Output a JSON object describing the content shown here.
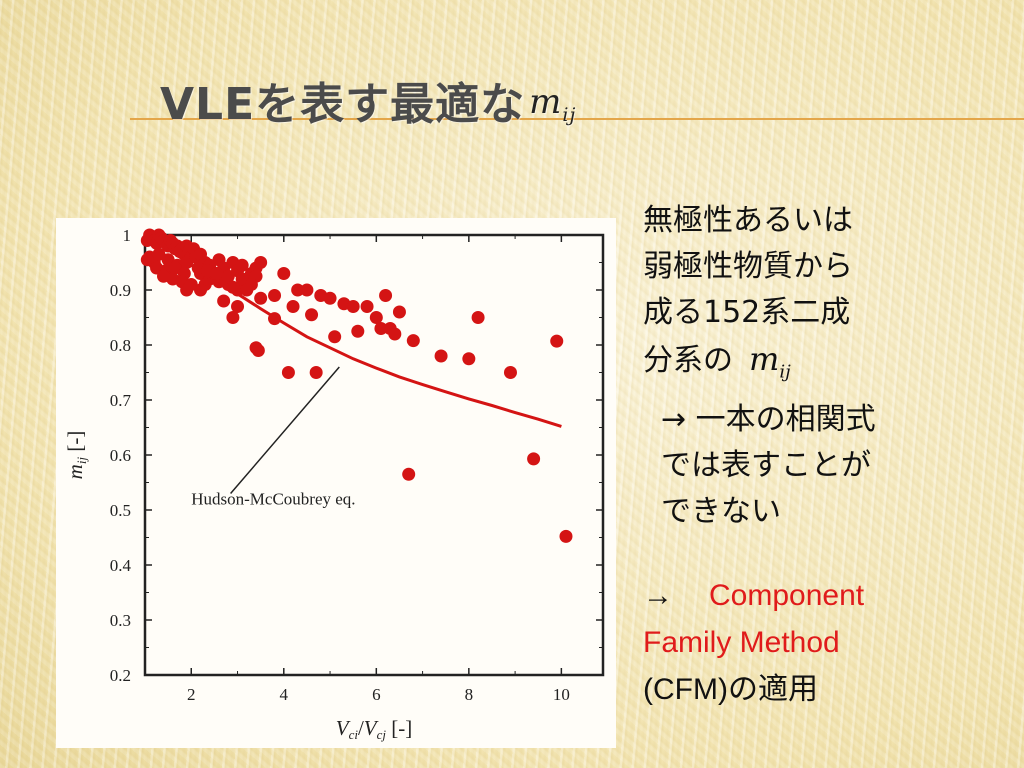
{
  "slide": {
    "title_text": "VLEを表す最適な",
    "title_math": "m",
    "title_math_sub": "ij",
    "bullet1_lines": [
      "無極性あるいは",
      "弱極性物質から",
      "成る152系二成",
      "分系の"
    ],
    "bullet1_math": "m",
    "bullet1_math_sub": "ij",
    "bullet2_lines": [
      "→ 一本の相関式",
      "では表すことが",
      "できない"
    ],
    "bullet3_arrow": "→",
    "bullet3_red_lines": [
      "Component",
      "Family Method"
    ],
    "bullet3_tail_red": "(CFM)",
    "bullet3_tail_black": "の適用"
  },
  "colors": {
    "title": "#4b4b4b",
    "accent_line": "#e4a64a",
    "marker": "#d41414",
    "highlight_text": "#e01b1b"
  },
  "chart_data": {
    "type": "scatter",
    "xlabel_parts": [
      "V",
      "ci",
      "/",
      "V",
      "cj",
      " [-]"
    ],
    "ylabel_parts": [
      "m",
      "ij",
      " [-]"
    ],
    "xlim": [
      1,
      10.9
    ],
    "ylim": [
      0.2,
      1.0
    ],
    "x_ticks": [
      2,
      4,
      6,
      8,
      10
    ],
    "x_tick_labels": [
      "2",
      "4",
      "6",
      "8",
      "10"
    ],
    "y_ticks": [
      0.2,
      0.3,
      0.4,
      0.5,
      0.6,
      0.7,
      0.8,
      0.9,
      1.0
    ],
    "y_tick_labels": [
      "0.2",
      "0.3",
      "0.4",
      "0.5",
      "0.6",
      "0.7",
      "0.8",
      "0.9",
      "1"
    ],
    "annotation": {
      "text": "Hudson-McCoubrey eq.",
      "x": 2.0,
      "y": 0.51,
      "arrow_to": [
        5.2,
        0.76
      ]
    },
    "series": [
      {
        "kind": "line",
        "x": [
          1.0,
          1.5,
          2.0,
          2.5,
          3.0,
          3.5,
          4.0,
          4.5,
          5.0,
          5.5,
          6.0,
          6.5,
          7.0,
          7.5,
          8.0,
          8.5,
          9.0,
          9.5,
          10.0
        ],
        "y": [
          1.0,
          0.975,
          0.945,
          0.92,
          0.893,
          0.866,
          0.84,
          0.815,
          0.795,
          0.775,
          0.758,
          0.742,
          0.728,
          0.715,
          0.702,
          0.69,
          0.677,
          0.665,
          0.652
        ]
      },
      {
        "kind": "scatter",
        "x": [
          1.05,
          1.1,
          1.15,
          1.2,
          1.25,
          1.3,
          1.35,
          1.4,
          1.45,
          1.5,
          1.55,
          1.6,
          1.65,
          1.7,
          1.75,
          1.8,
          1.85,
          1.9,
          1.95,
          2.0,
          2.05,
          1.1,
          1.2,
          1.3,
          1.5,
          1.7,
          1.9,
          1.05,
          1.25,
          1.45,
          1.65,
          1.85,
          2.1,
          2.2,
          2.3,
          2.4,
          2.5,
          2.6,
          2.7,
          2.8,
          2.9,
          3.0,
          3.1,
          3.2,
          3.3,
          3.4,
          3.5,
          2.2,
          2.4,
          2.6,
          2.8,
          3.0,
          3.2,
          3.4,
          2.3,
          2.5,
          2.7,
          2.9,
          3.1,
          3.3,
          2.15,
          2.35,
          2.55,
          1.6,
          1.8,
          2.0,
          2.2,
          1.4,
          1.9,
          2.7,
          2.9,
          3.0,
          3.2,
          3.5,
          3.8,
          4.0,
          4.3,
          4.5,
          4.8,
          5.0,
          5.3,
          5.5,
          5.8,
          6.0,
          6.2,
          6.3,
          6.5,
          3.8,
          4.2,
          4.6,
          5.1,
          5.6,
          6.1,
          6.4,
          4.1,
          4.7,
          3.4,
          3.45,
          6.8,
          7.4,
          8.0,
          8.2,
          8.9,
          9.9,
          6.7,
          9.4,
          10.1
        ],
        "y": [
          0.99,
          1.0,
          0.995,
          0.99,
          0.985,
          1.0,
          0.995,
          0.99,
          0.985,
          0.98,
          0.99,
          0.985,
          0.975,
          0.98,
          0.97,
          0.975,
          0.965,
          0.98,
          0.97,
          0.96,
          0.975,
          0.96,
          0.95,
          0.965,
          0.955,
          0.945,
          0.95,
          0.955,
          0.94,
          0.935,
          0.94,
          0.93,
          0.96,
          0.965,
          0.95,
          0.945,
          0.93,
          0.955,
          0.94,
          0.925,
          0.95,
          0.935,
          0.945,
          0.92,
          0.93,
          0.94,
          0.95,
          0.93,
          0.92,
          0.915,
          0.91,
          0.9,
          0.915,
          0.925,
          0.91,
          0.93,
          0.92,
          0.905,
          0.92,
          0.91,
          0.94,
          0.935,
          0.93,
          0.92,
          0.915,
          0.91,
          0.9,
          0.925,
          0.9,
          0.88,
          0.85,
          0.87,
          0.9,
          0.885,
          0.89,
          0.93,
          0.9,
          0.9,
          0.89,
          0.885,
          0.875,
          0.87,
          0.87,
          0.85,
          0.89,
          0.83,
          0.86,
          0.848,
          0.87,
          0.855,
          0.815,
          0.825,
          0.83,
          0.82,
          0.75,
          0.75,
          0.795,
          0.79,
          0.808,
          0.78,
          0.775,
          0.85,
          0.75,
          0.807,
          0.565,
          0.593,
          0.452
        ]
      }
    ]
  }
}
